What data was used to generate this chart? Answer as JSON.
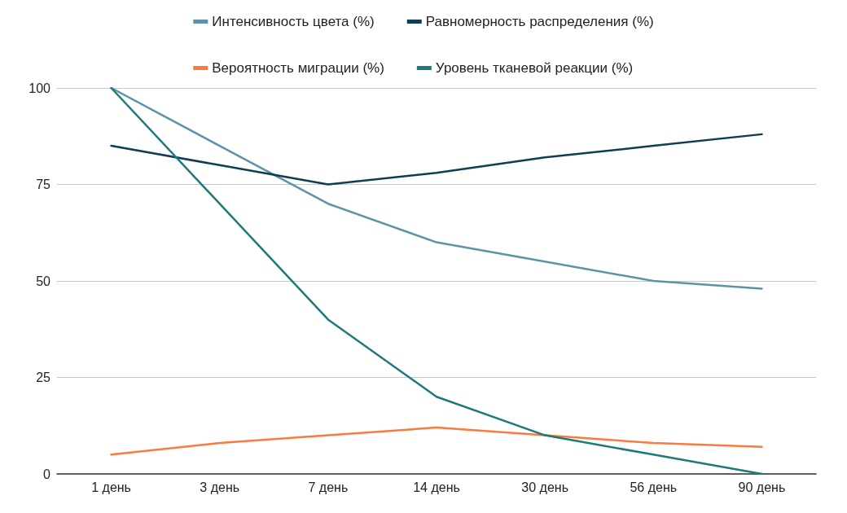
{
  "chart_data": {
    "type": "line",
    "categories": [
      "1 день",
      "3 день",
      "7 день",
      "14 день",
      "30 день",
      "56 день",
      "90 день"
    ],
    "series": [
      {
        "name": "Интенсивность цвета (%)",
        "color": "#5b93a8",
        "values": [
          100,
          85,
          70,
          60,
          55,
          50,
          48
        ]
      },
      {
        "name": "Равномерность распределения (%)",
        "color": "#0f3d52",
        "values": [
          85,
          80,
          75,
          78,
          82,
          85,
          88
        ]
      },
      {
        "name": "Вероятность миграции (%)",
        "color": "#f97b3d",
        "values": [
          5,
          8,
          10,
          12,
          10,
          8,
          7
        ]
      },
      {
        "name": "Уровень тканевой реакции (%)",
        "color": "#1e7a7a",
        "values": [
          100,
          70,
          40,
          20,
          10,
          5,
          0
        ]
      }
    ],
    "ylim": [
      0,
      100
    ],
    "yticks": [
      0,
      25,
      50,
      75,
      100
    ],
    "grid": "y",
    "legend": "top",
    "marker": "none",
    "line_style": "solid"
  }
}
